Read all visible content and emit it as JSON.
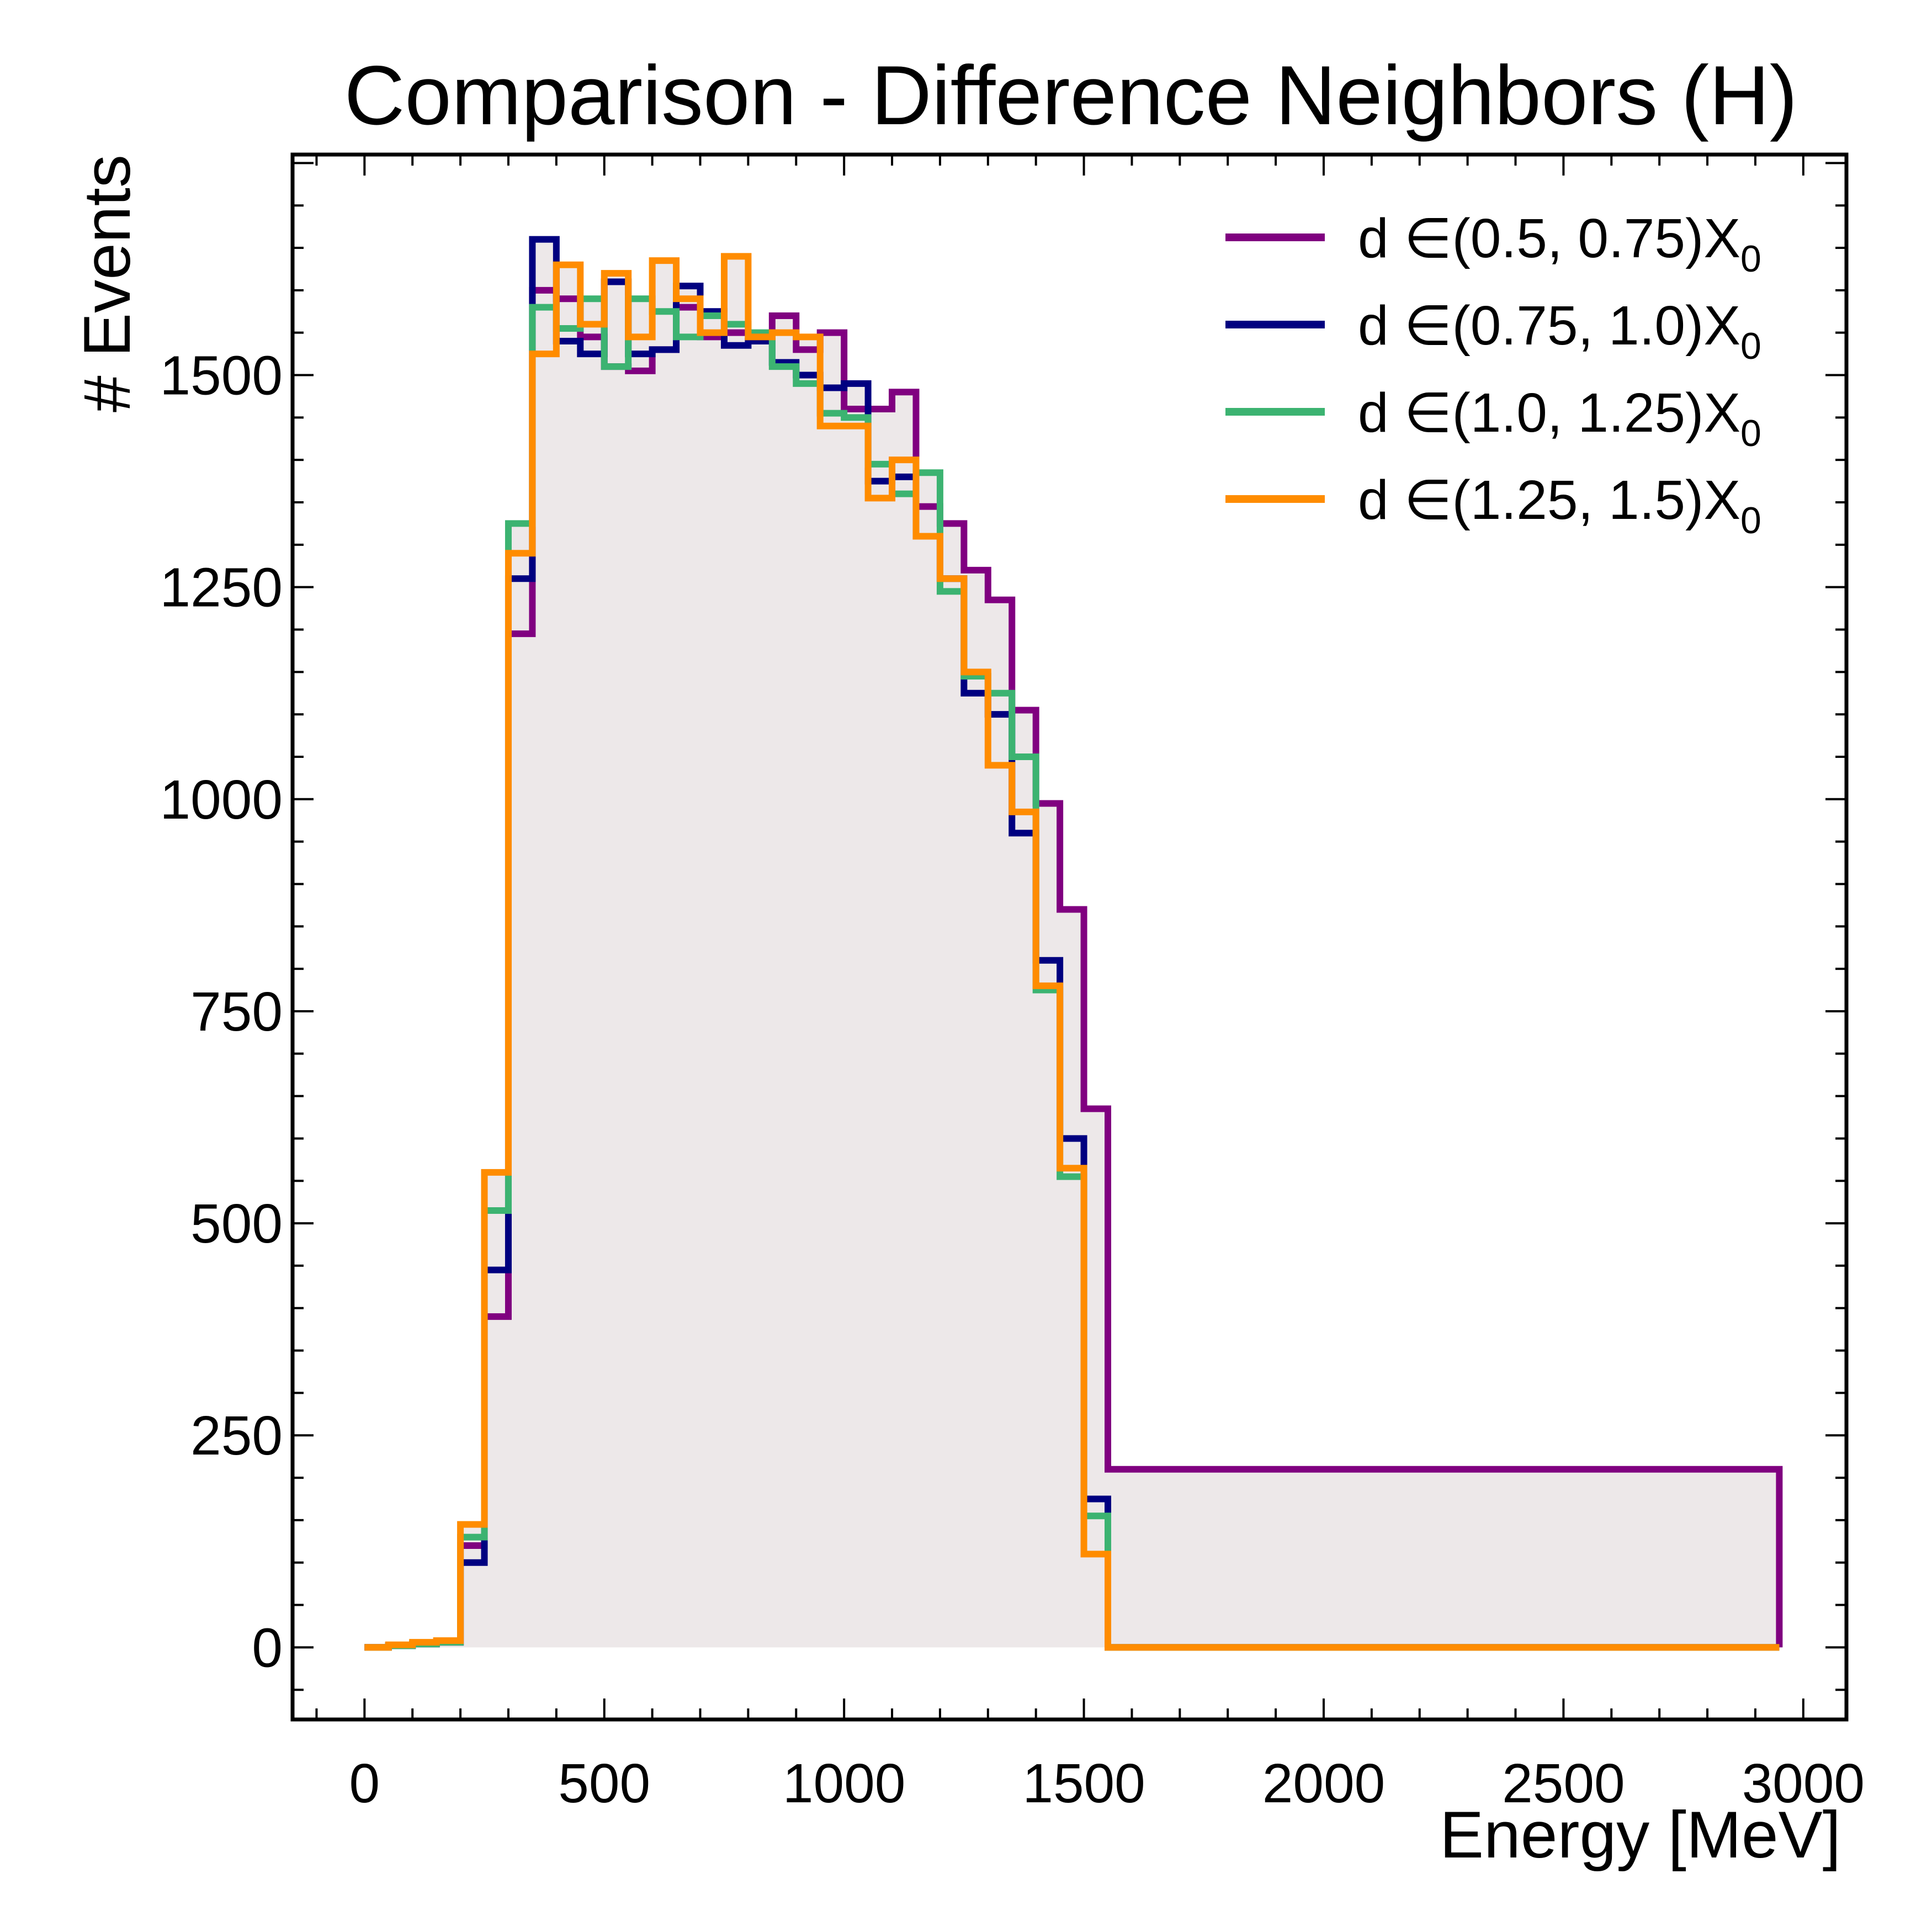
{
  "chart_data": {
    "type": "step-histogram",
    "title": "Comparison - Difference Neighbors (H)",
    "xlabel": "Energy [MeV]",
    "ylabel": "# Events",
    "xlim": [
      -150,
      3090
    ],
    "ylim": [
      -85,
      1760
    ],
    "xticks": [
      0,
      500,
      1000,
      1500,
      2000,
      2500,
      3000
    ],
    "yticks": [
      0,
      250,
      500,
      750,
      1000,
      1250,
      1500
    ],
    "legend_position": "top-right",
    "bin_edges": [
      0,
      50,
      100,
      150,
      200,
      250,
      300,
      350,
      400,
      450,
      500,
      550,
      600,
      650,
      700,
      750,
      800,
      850,
      900,
      950,
      1000,
      1050,
      1100,
      1150,
      1200,
      1250,
      1300,
      1350,
      1400,
      1450,
      1500,
      1550,
      2950
    ],
    "fill_color": "#ede8e9",
    "series": [
      {
        "name": "d ∈(0.5, 0.75)X₀",
        "legend_main": "d ∈(0.5, 0.75)X",
        "legend_sub": "0",
        "color": "#800080",
        "values": [
          0,
          2,
          4,
          6,
          120,
          390,
          1195,
          1600,
          1590,
          1545,
          1510,
          1505,
          1530,
          1580,
          1545,
          1550,
          1545,
          1570,
          1530,
          1550,
          1460,
          1460,
          1480,
          1345,
          1325,
          1270,
          1235,
          1105,
          995,
          870,
          635,
          210,
          0
        ]
      },
      {
        "name": "d ∈(0.75, 1.0)X₀",
        "legend_main": "d ∈(0.75, 1.0)X",
        "legend_sub": "0",
        "color": "#000080",
        "values": [
          0,
          2,
          4,
          6,
          100,
          445,
          1260,
          1660,
          1540,
          1525,
          1610,
          1525,
          1530,
          1605,
          1575,
          1535,
          1540,
          1515,
          1500,
          1485,
          1490,
          1375,
          1380,
          1310,
          1260,
          1125,
          1100,
          960,
          810,
          600,
          175,
          0,
          0
        ]
      },
      {
        "name": "d ∈(1.0, 1.25)X₀",
        "legend_main": "d ∈(1.0, 1.25)X",
        "legend_sub": "0",
        "color": "#3cb371",
        "values": [
          0,
          2,
          4,
          6,
          130,
          515,
          1325,
          1580,
          1555,
          1590,
          1510,
          1590,
          1575,
          1545,
          1570,
          1560,
          1550,
          1510,
          1490,
          1455,
          1450,
          1395,
          1360,
          1385,
          1245,
          1145,
          1125,
          1050,
          775,
          555,
          155,
          0,
          0
        ]
      },
      {
        "name": "d ∈(1.25, 1.5)X₀",
        "legend_main": "d ∈(1.25, 1.5)X",
        "legend_sub": "0",
        "color": "#ff8c00",
        "values": [
          0,
          3,
          6,
          8,
          145,
          560,
          1290,
          1525,
          1630,
          1560,
          1620,
          1545,
          1635,
          1590,
          1550,
          1640,
          1545,
          1550,
          1545,
          1440,
          1440,
          1355,
          1400,
          1310,
          1260,
          1150,
          1040,
          985,
          780,
          565,
          110,
          0,
          0
        ]
      }
    ]
  }
}
